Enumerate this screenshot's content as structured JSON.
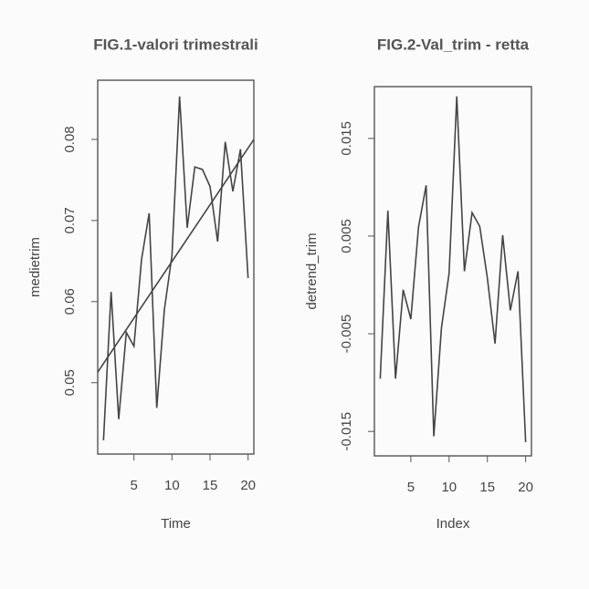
{
  "chart_data": [
    {
      "type": "line",
      "title": "FIG.1-valori trimestrali",
      "x_label": "Time",
      "y_label": "medietrim",
      "x": [
        1,
        2,
        3,
        4,
        5,
        6,
        7,
        8,
        9,
        10,
        11,
        12,
        13,
        14,
        15,
        16,
        17,
        18,
        19,
        20
      ],
      "series": [
        {
          "color": "#444444",
          "values": [
            0.0429,
            0.0612,
            0.0455,
            0.0562,
            0.0545,
            0.0652,
            0.0709,
            0.0469,
            0.059,
            0.0657,
            0.0853,
            0.0691,
            0.0766,
            0.0763,
            0.0742,
            0.0674,
            0.0797,
            0.0736,
            0.0788,
            0.0629
          ]
        }
      ],
      "trend": {
        "x": [
          0.24,
          20.76
        ],
        "values": [
          0.0513,
          0.08
        ]
      },
      "xlim": [
        0.24,
        20.76
      ],
      "ylim": [
        0.0412,
        0.0873
      ],
      "xticks": [
        5,
        10,
        15,
        20
      ],
      "yticks": [
        0.05,
        0.06,
        0.07,
        0.08
      ]
    },
    {
      "type": "line",
      "title": "FIG.2-Val_trim - retta",
      "x_label": "Index",
      "y_label": "detrend_trim",
      "x": [
        1,
        2,
        3,
        4,
        5,
        6,
        7,
        8,
        9,
        10,
        11,
        12,
        13,
        14,
        15,
        16,
        17,
        18,
        19,
        20
      ],
      "series": [
        {
          "color": "#444444",
          "values": [
            -0.0096,
            0.0076,
            -0.0096,
            -0.0005,
            -0.0035,
            0.0059,
            0.0102,
            -0.0155,
            -0.0044,
            0.0012,
            0.0193,
            0.0014,
            0.0074,
            0.006,
            0.0007,
            -0.006,
            0.0051,
            -0.0026,
            0.0014,
            -0.0161
          ]
        }
      ],
      "xlim": [
        0.24,
        20.76
      ],
      "ylim": [
        -0.0175,
        0.0203
      ],
      "xticks": [
        5,
        10,
        15,
        20
      ],
      "yticks": [
        0.015,
        0.005,
        -0.005,
        -0.015
      ]
    }
  ]
}
